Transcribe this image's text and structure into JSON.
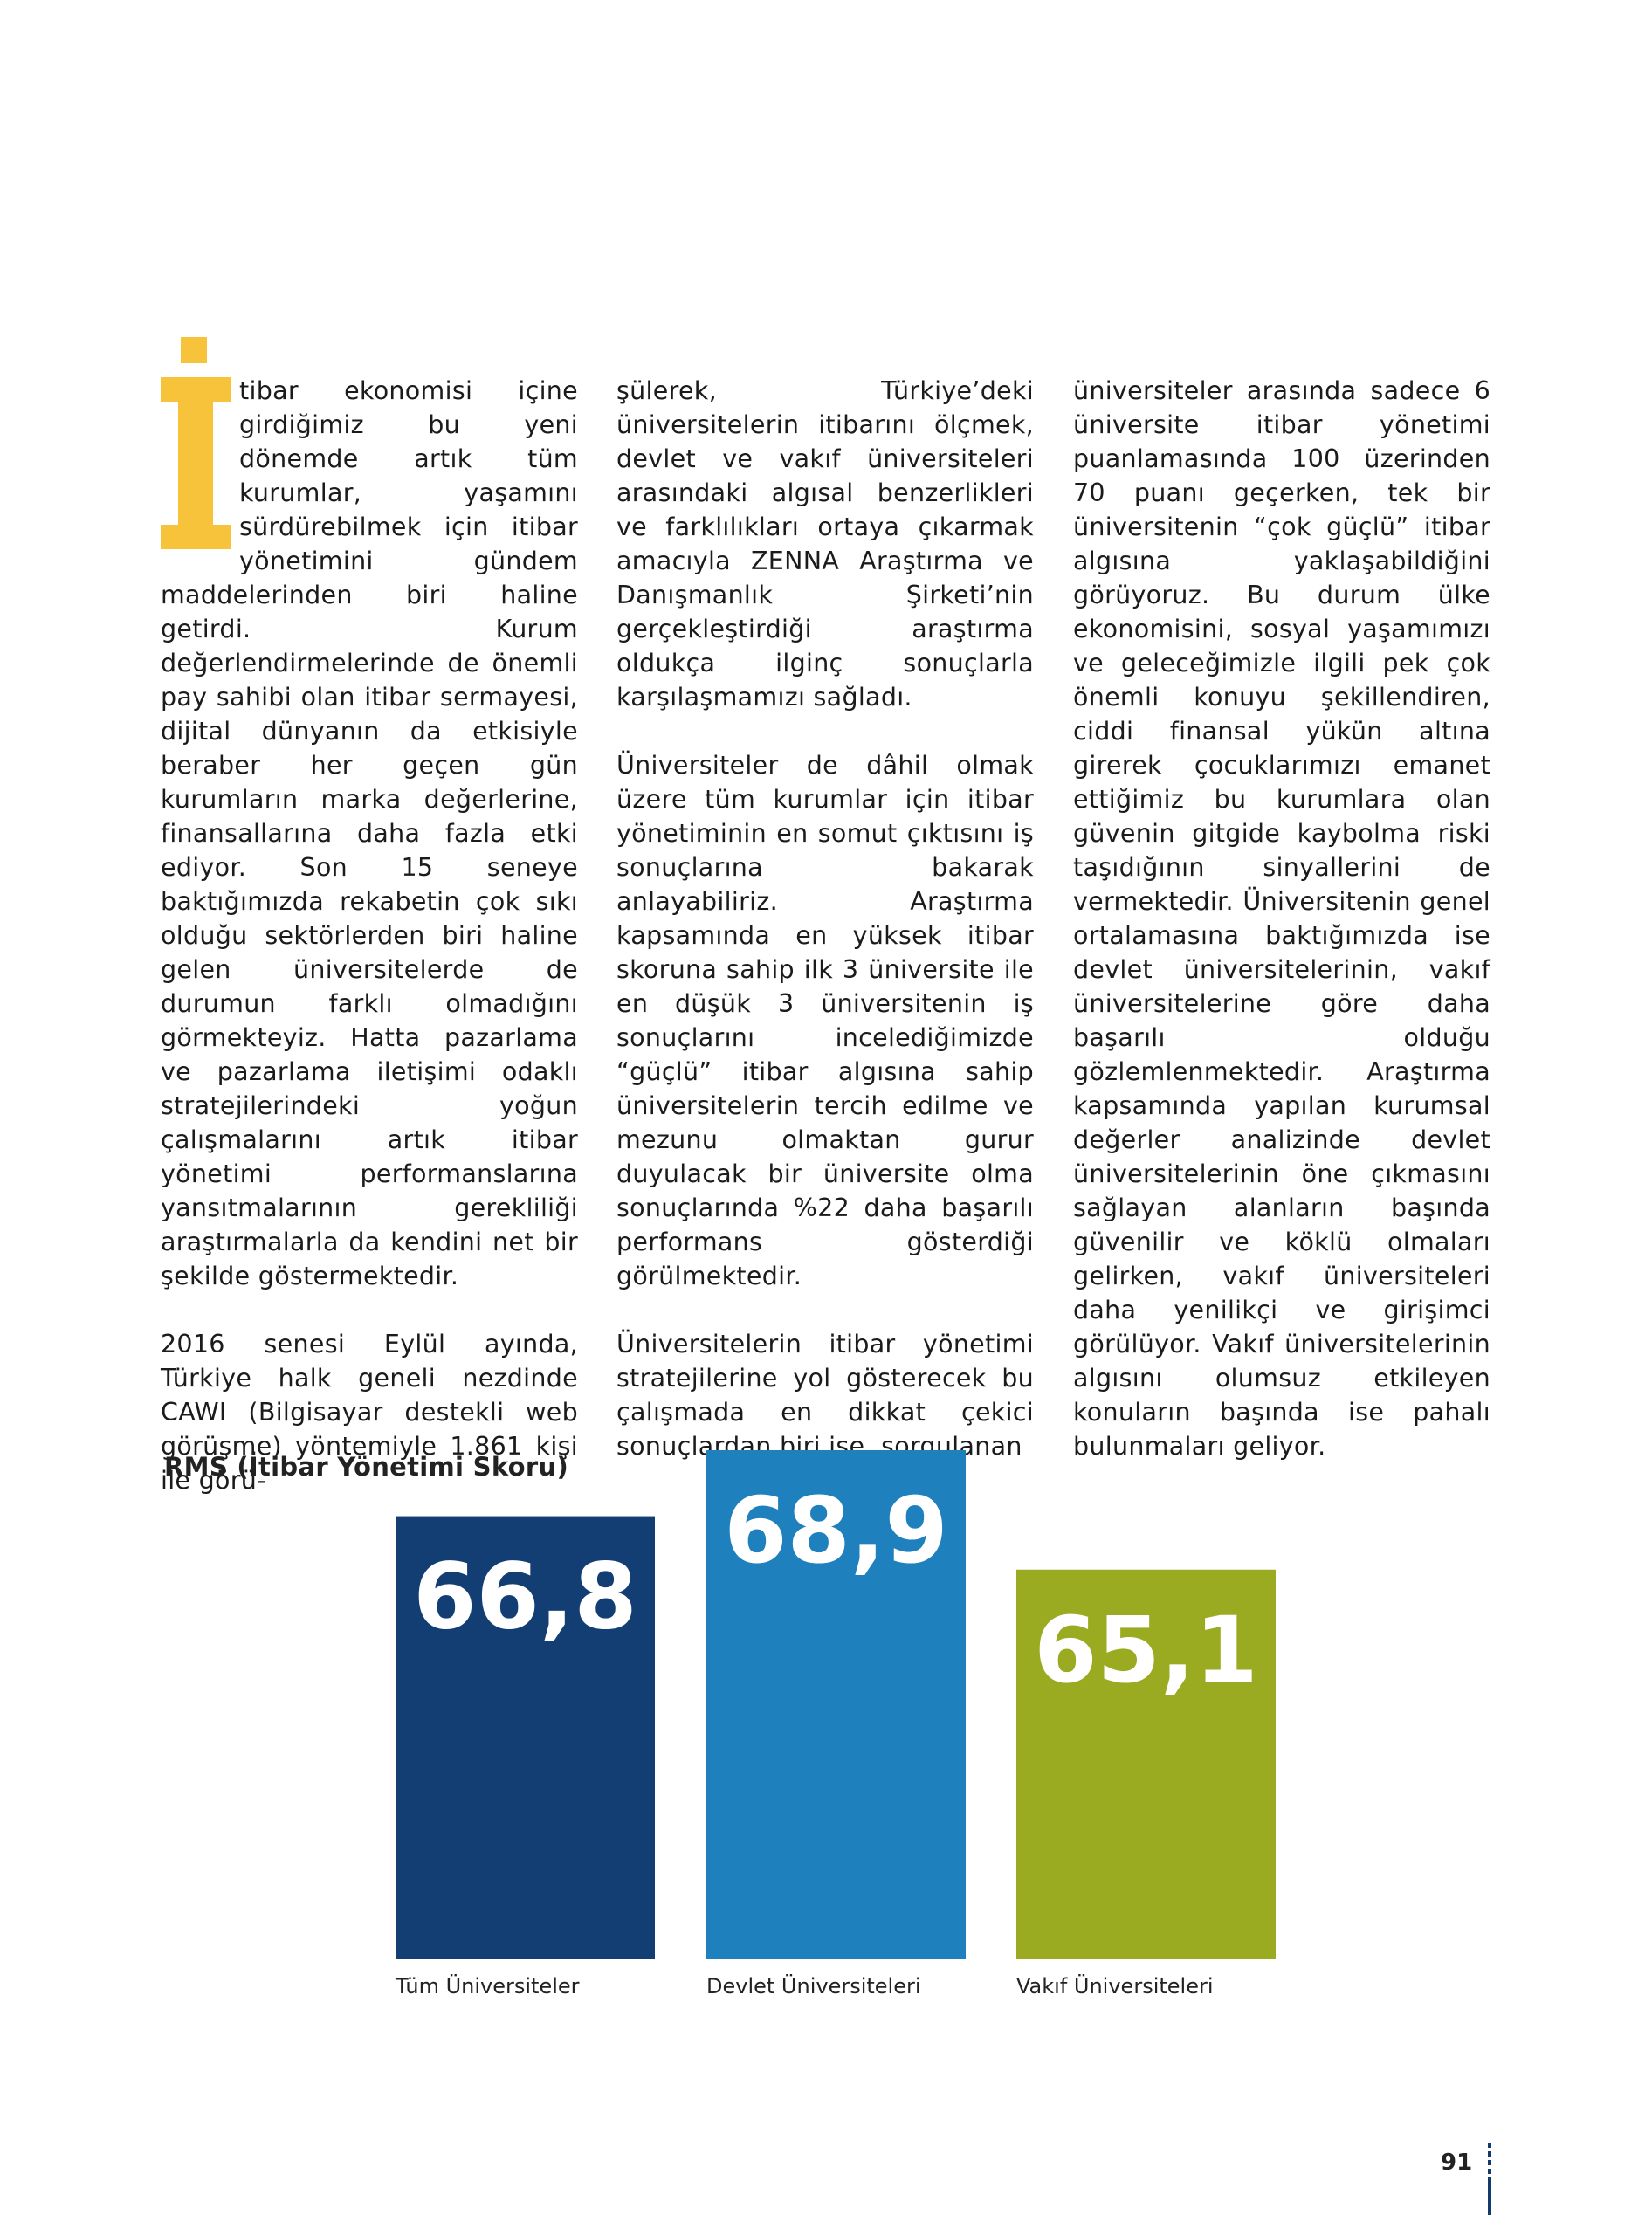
{
  "article": {
    "dropcap_letter": "İ",
    "col1": {
      "p1": "tibar ekonomisi içine girdiğimiz bu yeni dönemde artık tüm kurumlar, yaşamını sürdürebilmek için itibar yönetimini gündem maddelerinden biri haline getirdi. Kurum değerlendirmelerinde de önemli pay sahibi olan itibar sermayesi, dijital dünyanın da etkisiyle beraber her geçen gün kurumların marka değerlerine, finansallarına daha fazla etki ediyor. Son 15 seneye baktığımızda rekabetin çok sıkı olduğu sektörlerden biri haline gelen üniversitelerde de durumun farklı olmadığını görmekteyiz. Hatta pazarlama ve pazarlama iletişimi odaklı stratejilerindeki yoğun çalışmalarını artık itibar yönetimi performanslarına yansıtmalarının gerekliliği araştırmalarla da kendini net bir şekilde göstermektedir.",
      "p2": "2016 senesi Eylül ayında, Türkiye halk geneli nezdinde CAWI (Bilgisayar destekli web görüşme) yöntemiyle 1.861 kişi ile görü-"
    },
    "col2": {
      "p1": "şülerek, Türkiye’deki üniversitelerin itibarını ölçmek, devlet ve vakıf üniversiteleri arasındaki algısal benzerlikleri ve farklılıkları ortaya çıkarmak amacıyla ZENNA Araştırma ve Danışmanlık Şirketi’nin gerçekleştirdiği araştırma oldukça ilginç sonuçlarla karşılaşmamızı sağladı.",
      "p2": "Üniversiteler de dâhil olmak üzere tüm kurumlar için itibar yönetiminin en somut çıktısını iş sonuçlarına bakarak anlayabiliriz. Araştırma kapsamında en yüksek itibar skoruna sahip ilk 3 üniversite ile en düşük 3 üniversitenin iş sonuçlarını incelediğimizde “güçlü” itibar algısına sahip üniversitelerin tercih edilme ve mezunu olmaktan gurur duyulacak bir üniversite olma sonuçlarında %22 daha başarılı performans gösterdiği görülmektedir.",
      "p3": "Üniversitelerin itibar yönetimi stratejilerine yol gösterecek bu çalışmada en dikkat çekici sonuçlardan biri ise, sorgulanan"
    },
    "col3": {
      "p1": "üniversiteler arasında sadece 6 üniversite itibar yönetimi puanlamasında 100 üzerinden 70 puanı geçerken, tek bir üniversitenin “çok güçlü” itibar algısına yaklaşabildiğini görüyoruz. Bu durum ülke ekonomisini, sosyal yaşamımızı ve geleceğimizle ilgili pek çok önemli konuyu şekillendiren, ciddi finansal yükün altına girerek çocuklarımızı emanet ettiğimiz bu kurumlara olan güvenin gitgide kaybolma riski taşıdığının sinyallerini de vermektedir. Üniversitenin genel ortalamasına baktığımızda ise devlet üniversitelerinin, vakıf üniversitelerine göre daha başarılı olduğu gözlemlenmektedir. Araştırma kapsamında yapılan kurumsal değerler analizinde devlet üniversitelerinin öne çıkmasını sağlayan alanların başında güvenilir ve köklü olmaları gelirken, vakıf üniversiteleri daha yenilikçi ve girişimci görülüyor. Vakıf üniversitelerinin algısını olumsuz etkileyen konuların başında ise pahalı bulunmaları geliyor."
    }
  },
  "chart_data": {
    "type": "bar",
    "title": "RMS (İtibar Yönetimi Skoru)",
    "categories": [
      "Tüm Üniversiteler",
      "Devlet Üniversiteleri",
      "Vakıf Üniversiteleri"
    ],
    "values": [
      66.8,
      68.9,
      65.1
    ],
    "value_labels": [
      "66,8",
      "68,9",
      "65,1"
    ],
    "colors": [
      "#133e74",
      "#1e80bd",
      "#9aab22"
    ],
    "ylim": [
      52.7,
      68.9
    ],
    "grid": false,
    "legend": "none"
  },
  "footer": {
    "page_number": "91"
  },
  "colors": {
    "accent_yellow": "#f6c33b",
    "navy": "#133e74"
  }
}
